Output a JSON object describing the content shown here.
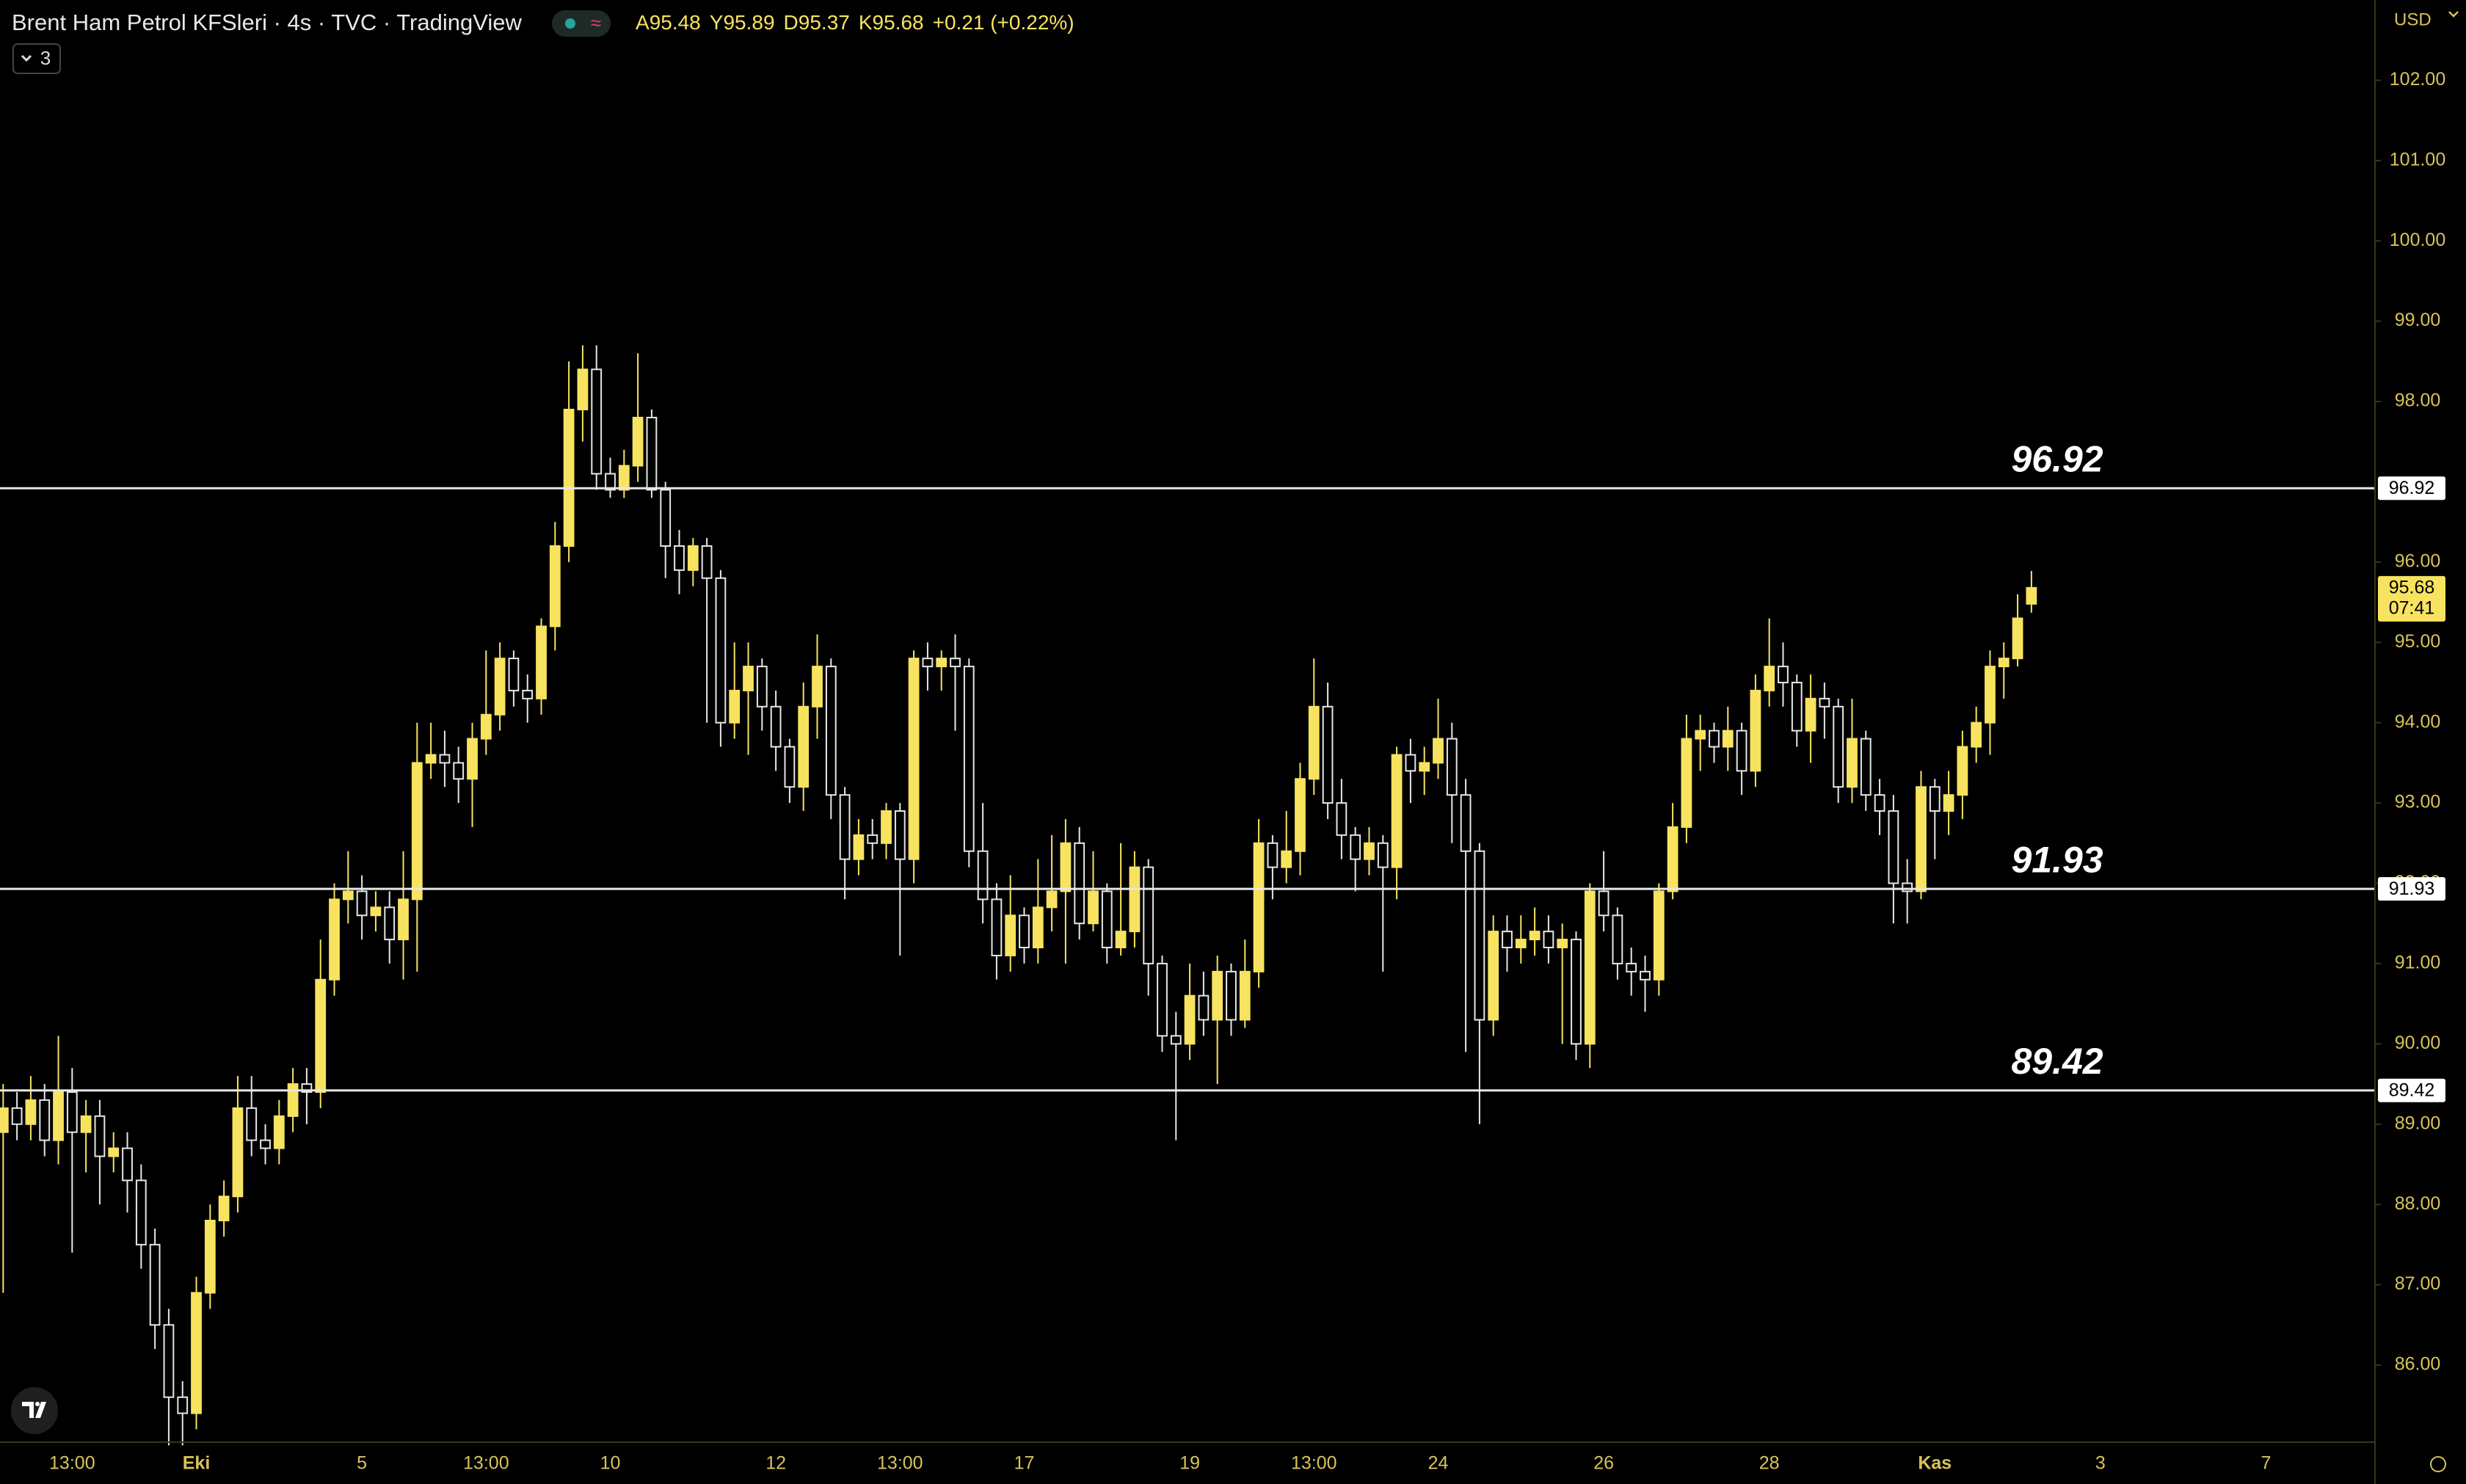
{
  "chart_data": {
    "type": "candlestick",
    "title": "Brent Ham Petrol KFSleri · 4s · TVC · TradingView",
    "ohlc_labels": [
      "A",
      "Y",
      "D",
      "K"
    ],
    "change_label": "+0.21 (+0.22%)",
    "indicators_collapsed": 3,
    "currency": "USD",
    "countdown": "07:41",
    "up_color": "#f7e35f",
    "down_color": "#e6e6e6",
    "axis_color": "#d8c35a",
    "xlim": [
      -0.23,
      171.9
    ],
    "ylim": [
      85.04,
      103.0
    ],
    "xticks": [
      {
        "value": 5,
        "label": "13:00"
      },
      {
        "value": 14,
        "label": "Eki"
      },
      {
        "value": 26,
        "label": "5"
      },
      {
        "value": 35,
        "label": "13:00"
      },
      {
        "value": 44,
        "label": "10"
      },
      {
        "value": 56,
        "label": "12"
      },
      {
        "value": 65,
        "label": "13:00"
      },
      {
        "value": 74,
        "label": "17"
      },
      {
        "value": 86,
        "label": "19"
      },
      {
        "value": 95,
        "label": "13:00"
      },
      {
        "value": 104,
        "label": "24"
      },
      {
        "value": 116,
        "label": "26"
      },
      {
        "value": 128,
        "label": "28"
      },
      {
        "value": 140,
        "label": "Kas"
      },
      {
        "value": 152,
        "label": "3"
      },
      {
        "value": 164,
        "label": "7"
      }
    ],
    "yticks": [
      {
        "value": 86,
        "label": "86.00"
      },
      {
        "value": 87,
        "label": "87.00"
      },
      {
        "value": 88,
        "label": "88.00"
      },
      {
        "value": 89,
        "label": "89.00"
      },
      {
        "value": 90,
        "label": "90.00"
      },
      {
        "value": 91,
        "label": "91.00"
      },
      {
        "value": 92,
        "label": "92.00"
      },
      {
        "value": 93,
        "label": "93.00"
      },
      {
        "value": 94,
        "label": "94.00"
      },
      {
        "value": 95,
        "label": "95.00"
      },
      {
        "value": 96,
        "label": "96.00"
      },
      {
        "value": 98,
        "label": "98.00"
      },
      {
        "value": 99,
        "label": "99.00"
      },
      {
        "value": 100,
        "label": "100.00"
      },
      {
        "value": 101,
        "label": "101.00"
      },
      {
        "value": 102,
        "label": "102.00"
      }
    ],
    "levels": [
      96.92,
      91.93,
      89.42
    ],
    "open": [
      88.9,
      89.2,
      89.0,
      89.3,
      88.8,
      89.4,
      88.9,
      89.1,
      88.6,
      88.7,
      88.3,
      87.5,
      86.5,
      85.6,
      85.4,
      86.9,
      87.8,
      88.1,
      89.2,
      88.8,
      88.7,
      89.1,
      89.5,
      89.4,
      90.8,
      91.8,
      91.9,
      91.6,
      91.7,
      91.3,
      91.8,
      93.5,
      93.6,
      93.5,
      93.3,
      93.8,
      94.1,
      94.8,
      94.4,
      94.3,
      95.2,
      96.2,
      97.9,
      98.4,
      97.1,
      96.9,
      97.2,
      97.8,
      96.9,
      96.2,
      95.9,
      96.2,
      95.8,
      94.0,
      94.4,
      94.7,
      94.2,
      93.7,
      93.2,
      94.2,
      94.7,
      93.1,
      92.3,
      92.6,
      92.5,
      92.9,
      92.3,
      94.8,
      94.7,
      94.8,
      94.7,
      92.4,
      91.8,
      91.1,
      91.6,
      91.2,
      91.7,
      91.9,
      92.5,
      91.5,
      91.9,
      91.2,
      91.4,
      92.2,
      91.0,
      90.1,
      90.0,
      90.6,
      90.3,
      90.9,
      90.3,
      90.9,
      92.5,
      92.2,
      92.4,
      93.3,
      94.2,
      93.0,
      92.6,
      92.3,
      92.5,
      92.2,
      93.6,
      93.4,
      93.5,
      93.8,
      93.1,
      92.4,
      90.3,
      91.4,
      91.2,
      91.3,
      91.4,
      91.2,
      91.3,
      90.0,
      91.9,
      91.6,
      91.0,
      90.9,
      90.8,
      91.9,
      92.7,
      93.8,
      93.9,
      93.7,
      93.9,
      93.4,
      94.4,
      94.7,
      94.5,
      93.9,
      94.3,
      94.2,
      93.2,
      93.8,
      93.1,
      92.9,
      92.0,
      91.9,
      93.2,
      92.9,
      93.1,
      93.7,
      94.0,
      94.7,
      94.8,
      95.48
    ],
    "high": [
      89.5,
      89.4,
      89.6,
      89.5,
      90.1,
      89.7,
      89.3,
      89.3,
      88.9,
      88.9,
      88.5,
      87.7,
      86.7,
      85.8,
      87.1,
      88.0,
      88.3,
      89.6,
      89.6,
      89.0,
      89.3,
      89.7,
      89.7,
      91.3,
      92.0,
      92.4,
      92.1,
      91.9,
      91.9,
      92.4,
      94.0,
      94.0,
      93.9,
      93.7,
      94.0,
      94.9,
      95.0,
      94.9,
      94.6,
      95.3,
      96.5,
      98.5,
      98.7,
      98.7,
      97.3,
      97.4,
      98.6,
      97.9,
      97.0,
      96.4,
      96.3,
      96.3,
      95.9,
      95.0,
      95.0,
      94.8,
      94.4,
      93.8,
      94.5,
      95.1,
      94.8,
      93.2,
      92.8,
      92.8,
      93.0,
      93.0,
      94.9,
      95.0,
      94.9,
      95.1,
      94.8,
      93.0,
      92.0,
      92.1,
      91.7,
      92.3,
      92.6,
      92.8,
      92.7,
      92.4,
      92.0,
      92.5,
      92.4,
      92.3,
      91.1,
      90.4,
      91.0,
      90.9,
      91.1,
      91.0,
      91.3,
      92.8,
      92.6,
      92.9,
      93.5,
      94.8,
      94.5,
      93.3,
      92.7,
      92.7,
      92.6,
      93.7,
      93.8,
      93.7,
      94.3,
      94.0,
      93.3,
      92.5,
      91.6,
      91.6,
      91.6,
      91.7,
      91.6,
      91.5,
      91.4,
      92.0,
      92.4,
      91.7,
      91.2,
      91.1,
      92.0,
      93.0,
      94.1,
      94.1,
      94.0,
      94.2,
      94.0,
      94.6,
      95.3,
      95.0,
      94.6,
      94.6,
      94.5,
      94.3,
      94.3,
      93.9,
      93.3,
      93.1,
      92.3,
      93.4,
      93.3,
      93.4,
      93.9,
      94.2,
      94.9,
      95.0,
      95.6,
      95.89
    ],
    "low": [
      86.9,
      88.8,
      88.8,
      88.6,
      88.5,
      87.4,
      88.4,
      88.0,
      88.4,
      87.9,
      87.2,
      86.2,
      85.0,
      85.0,
      85.2,
      86.7,
      87.6,
      87.9,
      88.6,
      88.5,
      88.5,
      88.9,
      89.0,
      89.2,
      90.6,
      91.5,
      91.3,
      91.4,
      91.0,
      90.8,
      90.9,
      93.3,
      93.2,
      93.0,
      92.7,
      93.6,
      93.9,
      94.2,
      94.0,
      94.1,
      94.9,
      96.0,
      97.5,
      96.9,
      96.8,
      96.8,
      97.0,
      96.8,
      95.8,
      95.6,
      95.7,
      94.0,
      93.7,
      93.8,
      93.6,
      93.9,
      93.4,
      93.0,
      92.9,
      93.8,
      92.8,
      91.8,
      92.1,
      92.3,
      92.3,
      91.1,
      92.0,
      94.4,
      94.4,
      93.9,
      92.2,
      91.5,
      90.8,
      90.9,
      91.0,
      91.0,
      91.4,
      91.0,
      91.3,
      91.4,
      91.0,
      91.1,
      91.2,
      90.6,
      89.9,
      88.8,
      89.8,
      90.1,
      89.5,
      90.1,
      90.2,
      90.7,
      91.8,
      92.0,
      92.1,
      93.1,
      92.8,
      92.3,
      91.9,
      92.1,
      90.9,
      91.8,
      93.0,
      93.1,
      93.3,
      92.5,
      89.9,
      89.0,
      90.1,
      90.9,
      91.0,
      91.1,
      91.0,
      90.0,
      89.8,
      89.7,
      91.4,
      90.8,
      90.6,
      90.4,
      90.6,
      91.8,
      92.5,
      93.4,
      93.5,
      93.4,
      93.1,
      93.2,
      94.2,
      94.2,
      93.7,
      93.5,
      93.8,
      93.0,
      93.0,
      92.9,
      92.6,
      91.5,
      91.5,
      91.8,
      92.3,
      92.6,
      92.8,
      93.5,
      93.6,
      94.3,
      94.7,
      95.37
    ],
    "close": [
      89.2,
      89.0,
      89.3,
      88.8,
      89.4,
      88.9,
      89.1,
      88.6,
      88.7,
      88.3,
      87.5,
      86.5,
      85.6,
      85.4,
      86.9,
      87.8,
      88.1,
      89.2,
      88.8,
      88.7,
      89.1,
      89.5,
      89.4,
      90.8,
      91.8,
      91.9,
      91.6,
      91.7,
      91.3,
      91.8,
      93.5,
      93.6,
      93.5,
      93.3,
      93.8,
      94.1,
      94.8,
      94.4,
      94.3,
      95.2,
      96.2,
      97.9,
      98.4,
      97.1,
      96.9,
      97.2,
      97.8,
      96.9,
      96.2,
      95.9,
      96.2,
      95.8,
      94.0,
      94.4,
      94.7,
      94.2,
      93.7,
      93.2,
      94.2,
      94.7,
      93.1,
      92.3,
      92.6,
      92.5,
      92.9,
      92.3,
      94.8,
      94.7,
      94.8,
      94.7,
      92.4,
      91.8,
      91.1,
      91.6,
      91.2,
      91.7,
      91.9,
      92.5,
      91.5,
      91.9,
      91.2,
      91.4,
      92.2,
      91.0,
      90.1,
      90.0,
      90.6,
      90.3,
      90.9,
      90.3,
      90.9,
      92.5,
      92.2,
      92.4,
      93.3,
      94.2,
      93.0,
      92.6,
      92.3,
      92.5,
      92.2,
      93.6,
      93.4,
      93.5,
      93.8,
      93.1,
      92.4,
      90.3,
      91.4,
      91.2,
      91.3,
      91.4,
      91.2,
      91.3,
      90.0,
      91.9,
      91.6,
      91.0,
      90.9,
      90.8,
      91.9,
      92.7,
      93.8,
      93.9,
      93.7,
      93.9,
      93.4,
      94.4,
      94.7,
      94.5,
      93.9,
      94.3,
      94.2,
      93.2,
      93.8,
      93.1,
      92.9,
      92.0,
      91.9,
      93.2,
      92.9,
      93.1,
      93.7,
      94.0,
      94.7,
      94.8,
      95.3,
      95.68
    ]
  }
}
